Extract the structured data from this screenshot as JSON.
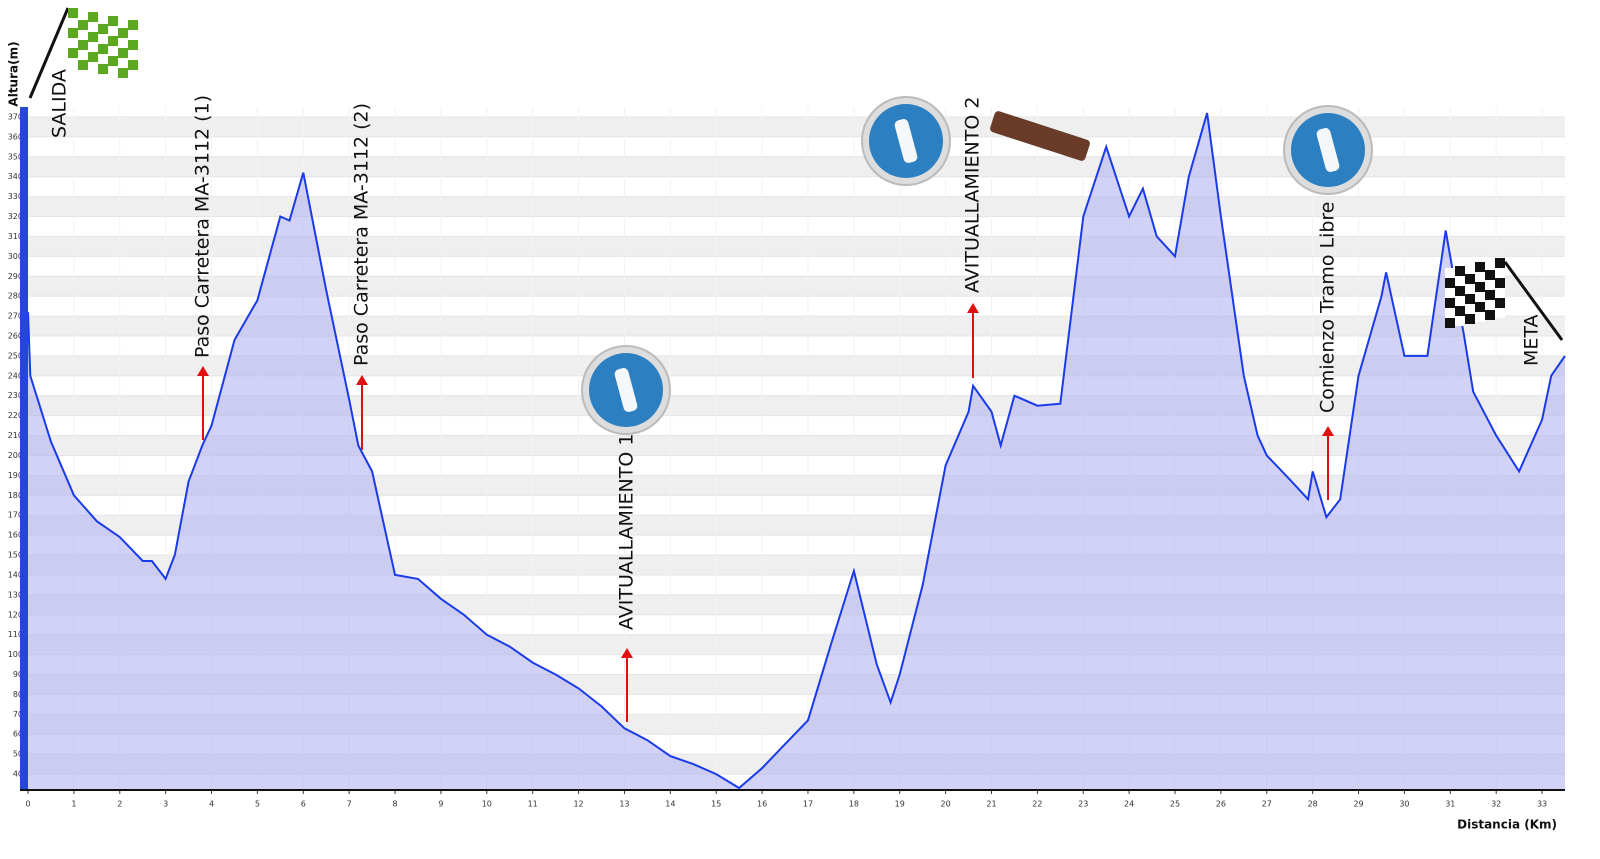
{
  "chart_data": {
    "type": "line",
    "y_label": "Altura(m)",
    "x_label": "Distancia (Km)",
    "annotations": [
      "SALIDA",
      "Paso Carretera MA-3112 (1)",
      "Paso Carretera MA-3112 (2)",
      "AVITUALLAMIENTO 1",
      "AVITUALLAMIENTO 2",
      "Comienzo Tramo Libre",
      "META"
    ],
    "x": [
      0,
      0.05,
      0.5,
      1,
      1.5,
      2,
      2.5,
      2.7,
      3,
      3.2,
      3.5,
      3.8,
      4,
      4.5,
      5,
      5.5,
      5.7,
      6,
      6.5,
      7,
      7.2,
      7.5,
      8,
      8.5,
      9,
      9.5,
      10,
      10.5,
      11,
      11.5,
      12,
      12.5,
      13,
      13.5,
      14,
      14.5,
      15,
      15.5,
      16,
      16.5,
      17,
      17.5,
      18,
      18.5,
      18.8,
      19,
      19.5,
      20,
      20.5,
      20.6,
      21,
      21.2,
      21.5,
      22,
      22.5,
      23,
      23.5,
      24,
      24.3,
      24.6,
      25,
      25.3,
      25.7,
      26,
      26.5,
      26.8,
      27,
      27.5,
      27.9,
      28,
      28.3,
      28.6,
      29,
      29.5,
      29.6,
      30,
      30.5,
      30.9,
      31.3,
      31.5,
      32,
      32.5,
      33,
      33.2,
      33.5
    ],
    "values": [
      272,
      240,
      207,
      180,
      167,
      159,
      147,
      147,
      138,
      150,
      187,
      205,
      215,
      258,
      278,
      320,
      318,
      342,
      283,
      228,
      205,
      192,
      140,
      138,
      128,
      120,
      110,
      104,
      96,
      90,
      83,
      74,
      63,
      57,
      49,
      45,
      40,
      33,
      43,
      55,
      67,
      105,
      142,
      95,
      76,
      90,
      135,
      195,
      222,
      235,
      222,
      205,
      230,
      225,
      226,
      320,
      355,
      320,
      334,
      310,
      300,
      340,
      372,
      320,
      240,
      210,
      200,
      188,
      178,
      192,
      169,
      178,
      240,
      280,
      292,
      250,
      250,
      313,
      260,
      232,
      210,
      192,
      218,
      240,
      250
    ],
    "color": "#1a3be8",
    "fill": "#b4b4f0",
    "xlim": [
      0,
      33.5
    ],
    "ylim": [
      32,
      375
    ],
    "xticks": [
      0,
      1,
      2,
      3,
      4,
      5,
      6,
      7,
      8,
      9,
      10,
      11,
      12,
      13,
      14,
      15,
      16,
      17,
      18,
      19,
      20,
      21,
      22,
      23,
      24,
      25,
      26,
      27,
      28,
      29,
      30,
      31,
      32,
      33
    ],
    "yticks": [
      40,
      50,
      60,
      70,
      80,
      90,
      100,
      110,
      120,
      130,
      140,
      150,
      160,
      170,
      180,
      190,
      200,
      210,
      220,
      230,
      240,
      250,
      260,
      270,
      280,
      290,
      300,
      310,
      320,
      330,
      340,
      350,
      360,
      370
    ],
    "grid": true
  }
}
